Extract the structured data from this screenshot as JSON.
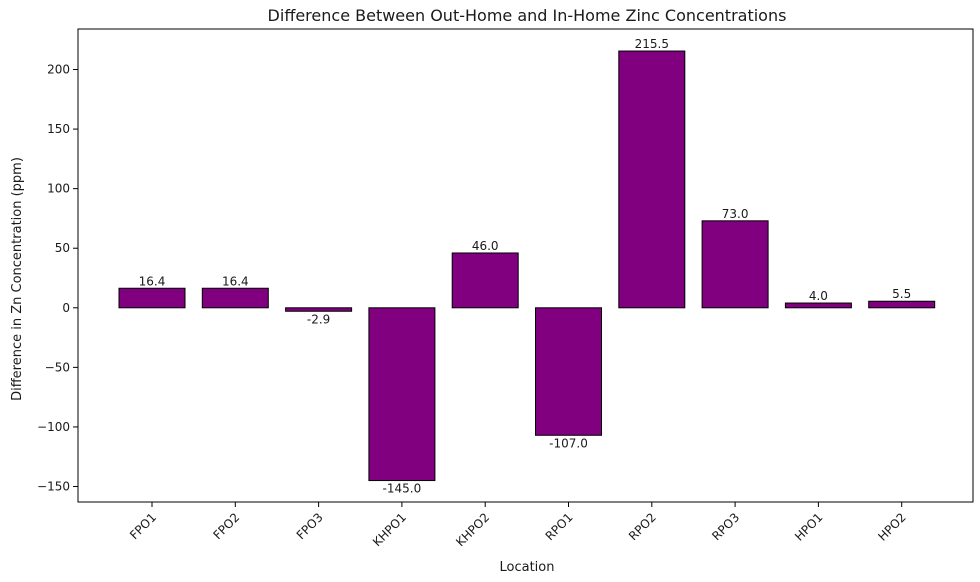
{
  "chart_data": {
    "type": "bar",
    "title": "Difference Between Out-Home and In-Home Zinc Concentrations",
    "xlabel": "Location",
    "ylabel": "Difference in Zn Concentration (ppm)",
    "categories": [
      "FPO1",
      "FPO2",
      "FPO3",
      "KHPO1",
      "KHPO2",
      "RPO1",
      "RPO2",
      "RPO3",
      "HPO1",
      "HPO2"
    ],
    "values": [
      16.4,
      16.4,
      -2.9,
      -145.0,
      46.0,
      -107.0,
      215.5,
      73.0,
      4.0,
      5.5
    ],
    "data_labels": [
      "16.4",
      "16.4",
      "-2.9",
      "-145.0",
      "46.0",
      "-107.0",
      "215.5",
      "73.0",
      "4.0",
      "5.5"
    ],
    "ylim": [
      -163,
      234
    ],
    "yticks": [
      -150,
      -100,
      -50,
      0,
      50,
      100,
      150,
      200
    ],
    "ytick_labels": [
      "−150",
      "−100",
      "−50",
      "0",
      "50",
      "100",
      "150",
      "200"
    ],
    "bar_color": "#800080",
    "edge_color": "#000000",
    "grid": false,
    "legend": false
  }
}
